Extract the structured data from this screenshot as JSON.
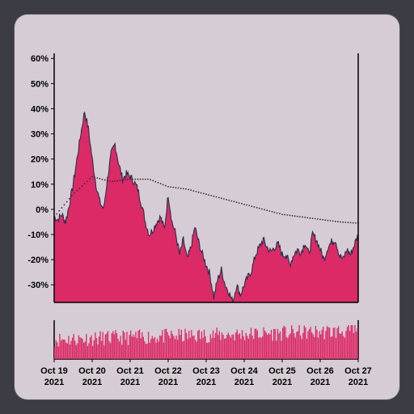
{
  "chart_data": {
    "type": "area",
    "title": "",
    "xlabel": "",
    "ylabel": "",
    "y_axis_format": "percent",
    "ylim": [
      -37,
      62
    ],
    "y_ticks": [
      "60%",
      "50%",
      "40%",
      "30%",
      "20%",
      "10%",
      "0%",
      "-10%",
      "-20%",
      "-30%"
    ],
    "y_tick_values": [
      60,
      50,
      40,
      30,
      20,
      10,
      0,
      -10,
      -20,
      -30
    ],
    "x_ticks": [
      {
        "line1": "Oct 19",
        "line2": "2021"
      },
      {
        "line1": "Oct 20",
        "line2": "2021"
      },
      {
        "line1": "Oct 21",
        "line2": "2021"
      },
      {
        "line1": "Oct 22",
        "line2": "2021"
      },
      {
        "line1": "Oct 23",
        "line2": "2021"
      },
      {
        "line1": "Oct 24",
        "line2": "2021"
      },
      {
        "line1": "Oct 25",
        "line2": "2021"
      },
      {
        "line1": "Oct 26",
        "line2": "2021"
      },
      {
        "line1": "Oct 27",
        "line2": "2021"
      }
    ],
    "x_domain_days": [
      0,
      8
    ],
    "series": [
      {
        "kind": "area",
        "x": [
          0,
          0.1,
          0.2,
          0.3,
          0.4,
          0.5,
          0.6,
          0.7,
          0.8,
          0.9,
          1.0,
          1.1,
          1.2,
          1.3,
          1.4,
          1.5,
          1.6,
          1.7,
          1.8,
          1.9,
          2.0,
          2.1,
          2.2,
          2.3,
          2.4,
          2.5,
          2.6,
          2.7,
          2.8,
          2.9,
          3.0,
          3.1,
          3.2,
          3.3,
          3.4,
          3.5,
          3.6,
          3.7,
          3.8,
          3.9,
          4.0,
          4.1,
          4.2,
          4.3,
          4.4,
          4.5,
          4.6,
          4.7,
          4.8,
          4.9,
          5.0,
          5.1,
          5.2,
          5.3,
          5.4,
          5.5,
          5.6,
          5.7,
          5.8,
          5.9,
          6.0,
          6.1,
          6.2,
          6.3,
          6.4,
          6.5,
          6.6,
          6.7,
          6.8,
          6.9,
          7.0,
          7.1,
          7.2,
          7.3,
          7.4,
          7.5,
          7.6,
          7.7,
          7.8,
          7.9,
          8.0
        ],
        "values": [
          -3,
          -4,
          -2,
          -5,
          2,
          10,
          20,
          30,
          39,
          32,
          20,
          10,
          3,
          0,
          12,
          22,
          26,
          18,
          12,
          14,
          13,
          11,
          8,
          2,
          -5,
          -10,
          -8,
          -5,
          -3,
          -8,
          6,
          -5,
          -10,
          -18,
          -12,
          -20,
          -15,
          -7,
          -13,
          -18,
          -22,
          -26,
          -35,
          -28,
          -24,
          -30,
          -33,
          -37,
          -30,
          -34,
          -30,
          -27,
          -24,
          -18,
          -15,
          -12,
          -15,
          -17,
          -15,
          -14,
          -18,
          -18,
          -22,
          -18,
          -16,
          -17,
          -13,
          -18,
          -10,
          -12,
          -16,
          -20,
          -15,
          -13,
          -12,
          -18,
          -20,
          -16,
          -18,
          -14,
          -10
        ],
        "color": "#dc2a67",
        "outline": "#27314a"
      },
      {
        "kind": "dotted-line",
        "x": [
          0,
          0.5,
          1.0,
          1.5,
          2.0,
          2.5,
          3.0,
          3.5,
          4.0,
          4.5,
          5.0,
          5.5,
          6.0,
          6.5,
          7.0,
          7.5,
          8.0
        ],
        "values": [
          -3,
          6,
          13,
          11,
          12,
          12,
          9,
          8,
          6,
          4,
          2,
          0,
          -2,
          -3,
          -4,
          -5,
          -5.5
        ],
        "color": "#3a2a30"
      }
    ],
    "volume": {
      "kind": "bar",
      "color": "#dc2a67",
      "count": 240,
      "values": "relative heights 0-1, see script seeded series"
    },
    "grid": false
  }
}
